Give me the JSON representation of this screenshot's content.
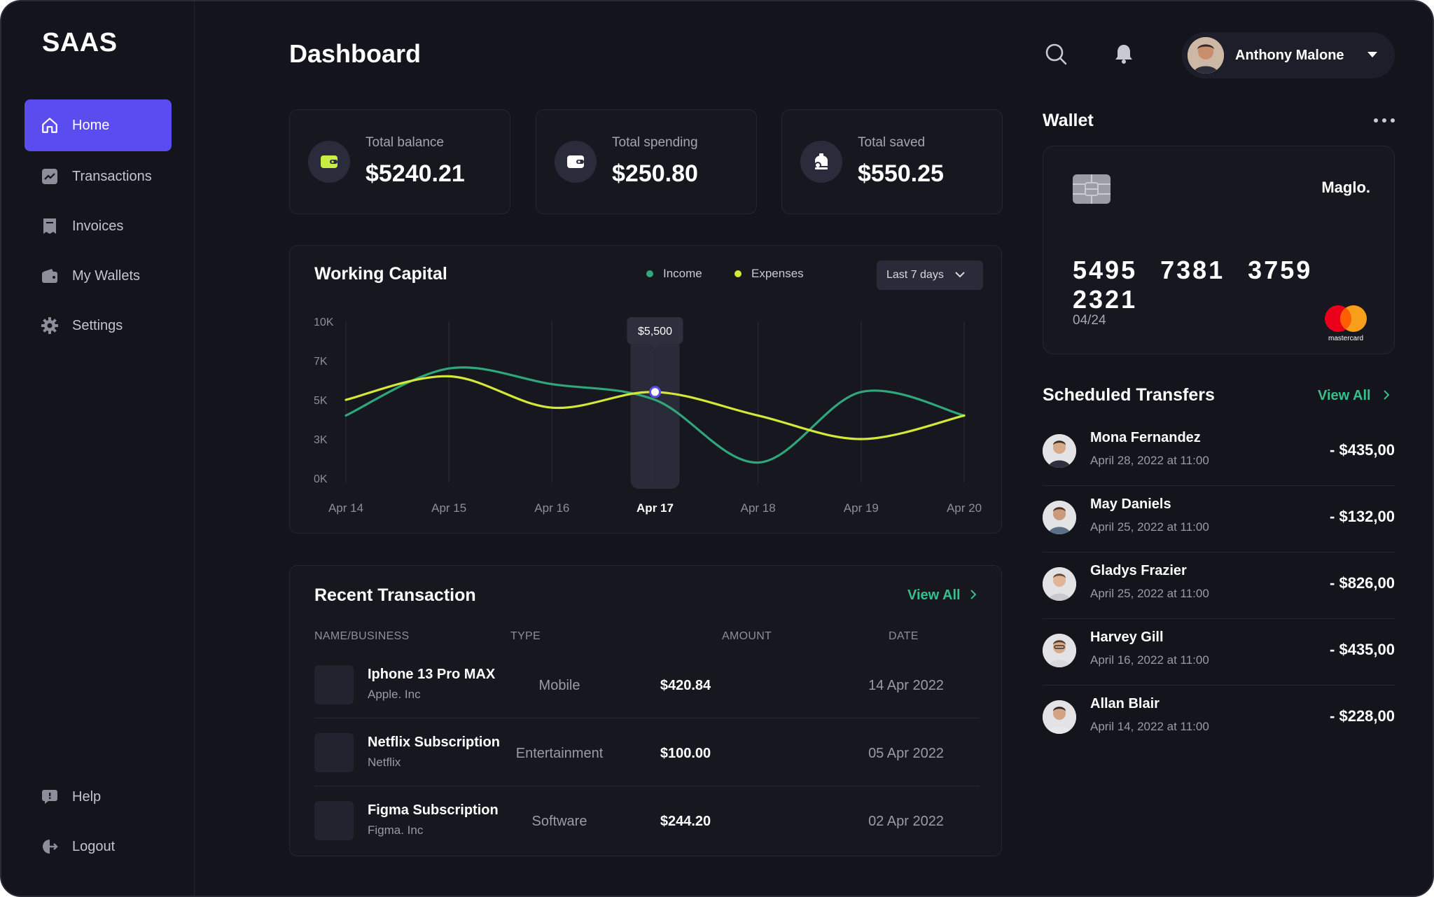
{
  "brand": "SAAS",
  "sidebar": {
    "items": [
      {
        "label": "Home",
        "icon": "home-icon"
      },
      {
        "label": "Transactions",
        "icon": "chart-trend-icon"
      },
      {
        "label": "Invoices",
        "icon": "invoice-icon"
      },
      {
        "label": "My Wallets",
        "icon": "wallet-icon"
      },
      {
        "label": "Settings",
        "icon": "gear-icon"
      }
    ],
    "bottom": [
      {
        "label": "Help",
        "icon": "help-chat-icon"
      },
      {
        "label": "Logout",
        "icon": "logout-icon"
      }
    ]
  },
  "header": {
    "title": "Dashboard",
    "user_name": "Anthony Malone"
  },
  "stats": [
    {
      "label": "Total balance",
      "value": "$5240.21",
      "icon": "wallet-card-icon",
      "icon_color": "#c8ee44"
    },
    {
      "label": "Total spending",
      "value": "$250.80",
      "icon": "wallet-card-icon",
      "icon_color": "#ffffff"
    },
    {
      "label": "Total saved",
      "value": "$550.25",
      "icon": "piggy-bank-icon",
      "icon_color": "#ffffff"
    }
  ],
  "working_capital": {
    "title": "Working Capital",
    "legend_income": "Income",
    "legend_expenses": "Expenses",
    "range_selected": "Last 7 days",
    "tooltip": "$5,500",
    "highlight_label": "Apr 17"
  },
  "chart_data": {
    "type": "line",
    "x": [
      "Apr 14",
      "Apr 15",
      "Apr 16",
      "Apr 17",
      "Apr 18",
      "Apr 19",
      "Apr 20"
    ],
    "yticks": [
      "10K",
      "7K",
      "5K",
      "3K",
      "0K"
    ],
    "series": [
      {
        "name": "Income",
        "color": "#2fa77a",
        "values": [
          4000,
          7000,
          6000,
          5000,
          1000,
          5500,
          4000
        ]
      },
      {
        "name": "Expenses",
        "color": "#d4e838",
        "values": [
          5000,
          6500,
          4500,
          5500,
          4000,
          2500,
          4000
        ]
      }
    ],
    "highlight": {
      "x": "Apr 17",
      "y": 5500,
      "label": "$5,500"
    },
    "ylim": [
      0,
      10000
    ]
  },
  "recent_transactions": {
    "title": "Recent Transaction",
    "view_all": "View All",
    "columns": [
      "NAME/BUSINESS",
      "TYPE",
      "AMOUNT",
      "DATE"
    ],
    "rows": [
      {
        "name": "Iphone 13 Pro MAX",
        "business": "Apple. Inc",
        "type": "Mobile",
        "amount": "$420.84",
        "date": "14 Apr 2022"
      },
      {
        "name": "Netflix Subscription",
        "business": "Netflix",
        "type": "Entertainment",
        "amount": "$100.00",
        "date": "05 Apr 2022"
      },
      {
        "name": "Figma Subscription",
        "business": "Figma. Inc",
        "type": "Software",
        "amount": "$244.20",
        "date": "02 Apr 2022"
      }
    ]
  },
  "wallet": {
    "title": "Wallet",
    "card_brand": "Maglo.",
    "card_number": "5495 7381 3759 2321",
    "expiry": "04/24",
    "network": "mastercard"
  },
  "scheduled_transfers": {
    "title": "Scheduled Transfers",
    "view_all": "View All",
    "items": [
      {
        "name": "Mona Fernandez",
        "date": "April 28, 2022 at 11:00",
        "amount": "- $435,00"
      },
      {
        "name": "May Daniels",
        "date": "April 25, 2022 at 11:00",
        "amount": "- $132,00"
      },
      {
        "name": "Gladys Frazier",
        "date": "April 25, 2022 at 11:00",
        "amount": "- $826,00"
      },
      {
        "name": "Harvey Gill",
        "date": "April 16, 2022 at 11:00",
        "amount": "- $435,00"
      },
      {
        "name": "Allan Blair",
        "date": "April 14, 2022 at 11:00",
        "amount": "- $228,00"
      }
    ]
  }
}
